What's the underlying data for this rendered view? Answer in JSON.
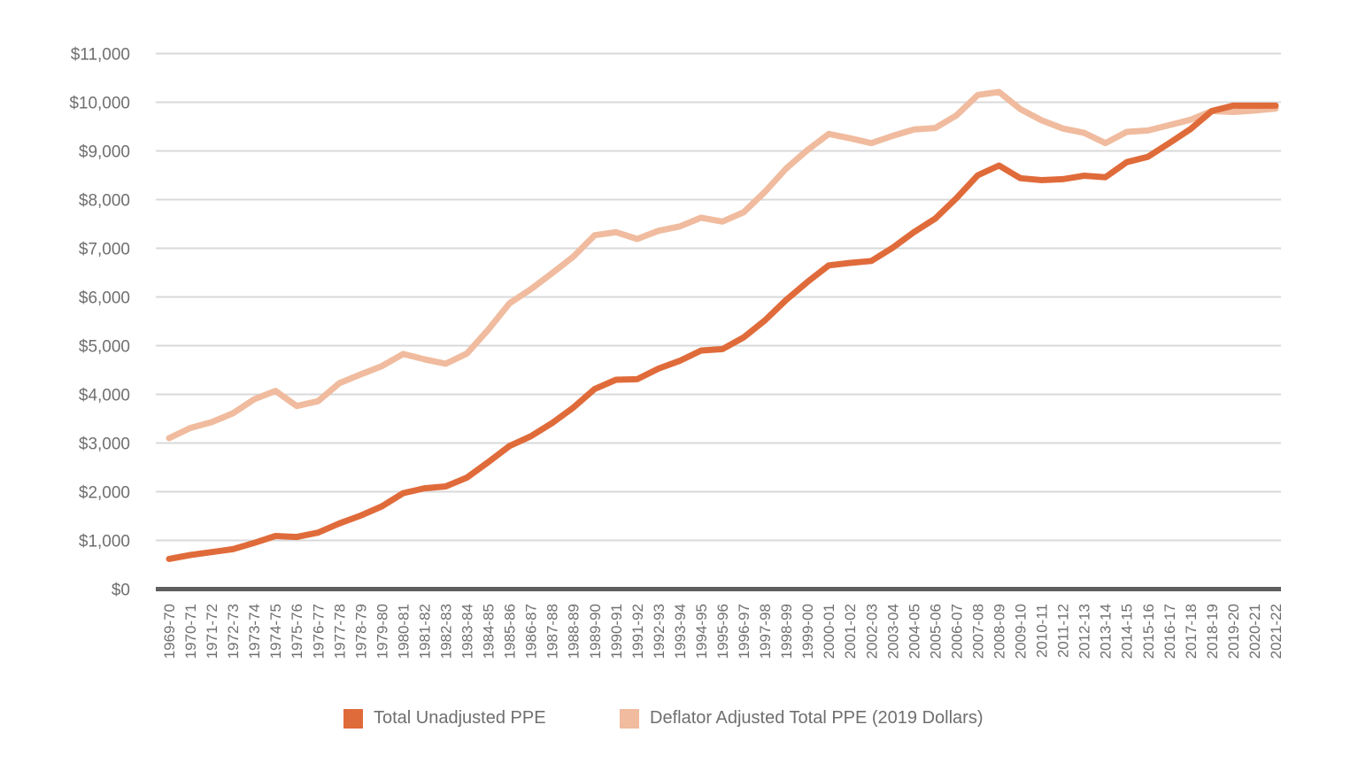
{
  "chart_data": {
    "type": "line",
    "categories": [
      "1969-70",
      "1970-71",
      "1971-72",
      "1972-73",
      "1973-74",
      "1974-75",
      "1975-76",
      "1976-77",
      "1977-78",
      "1978-79",
      "1979-80",
      "1980-81",
      "1981-82",
      "1982-83",
      "1983-84",
      "1984-85",
      "1985-86",
      "1986-87",
      "1987-88",
      "1988-89",
      "1989-90",
      "1990-91",
      "1991-92",
      "1992-93",
      "1993-94",
      "1994-95",
      "1995-96",
      "1996-97",
      "1997-98",
      "1998-99",
      "1999-00",
      "2000-01",
      "2001-02",
      "2002-03",
      "2003-04",
      "2004-05",
      "2005-06",
      "2006-07",
      "2007-08",
      "2008-09",
      "2009-10",
      "2010-11",
      "2011-12",
      "2012-13",
      "2013-14",
      "2014-15",
      "2015-16",
      "2016-17",
      "2017-18",
      "2018-19",
      "2019-20",
      "2020-21",
      "2021-22"
    ],
    "series": [
      {
        "name": "Total Unadjusted PPE",
        "color": "#e06b3a",
        "values": [
          620,
          700,
          760,
          820,
          950,
          1090,
          1070,
          1160,
          1350,
          1510,
          1700,
          1970,
          2070,
          2110,
          2290,
          2610,
          2940,
          3140,
          3410,
          3730,
          4110,
          4300,
          4310,
          4530,
          4690,
          4900,
          4930,
          5170,
          5520,
          5940,
          6310,
          6650,
          6700,
          6740,
          7010,
          7330,
          7610,
          8030,
          8500,
          8700,
          8440,
          8400,
          8420,
          8490,
          8460,
          8770,
          8880,
          9160,
          9450,
          9820,
          9930,
          9930,
          9930
        ]
      },
      {
        "name": "Deflator Adjusted Total PPE (2019 Dollars)",
        "color": "#f0bb9e",
        "values": [
          3100,
          3310,
          3430,
          3610,
          3900,
          4070,
          3760,
          3860,
          4230,
          4410,
          4580,
          4830,
          4720,
          4630,
          4840,
          5330,
          5870,
          6160,
          6490,
          6830,
          7270,
          7330,
          7190,
          7360,
          7450,
          7630,
          7550,
          7740,
          8160,
          8640,
          9020,
          9350,
          9260,
          9160,
          9310,
          9440,
          9470,
          9730,
          10150,
          10210,
          9860,
          9630,
          9460,
          9370,
          9160,
          9390,
          9420,
          9530,
          9640,
          9820,
          9800,
          9830,
          9870
        ]
      }
    ],
    "yticks": [
      "$0",
      "$1,000",
      "$2,000",
      "$3,000",
      "$4,000",
      "$5,000",
      "$6,000",
      "$7,000",
      "$8,000",
      "$9,000",
      "$10,000",
      "$11,000"
    ],
    "ylim": [
      0,
      11000
    ],
    "grid": true,
    "legend_position": "bottom-center"
  }
}
